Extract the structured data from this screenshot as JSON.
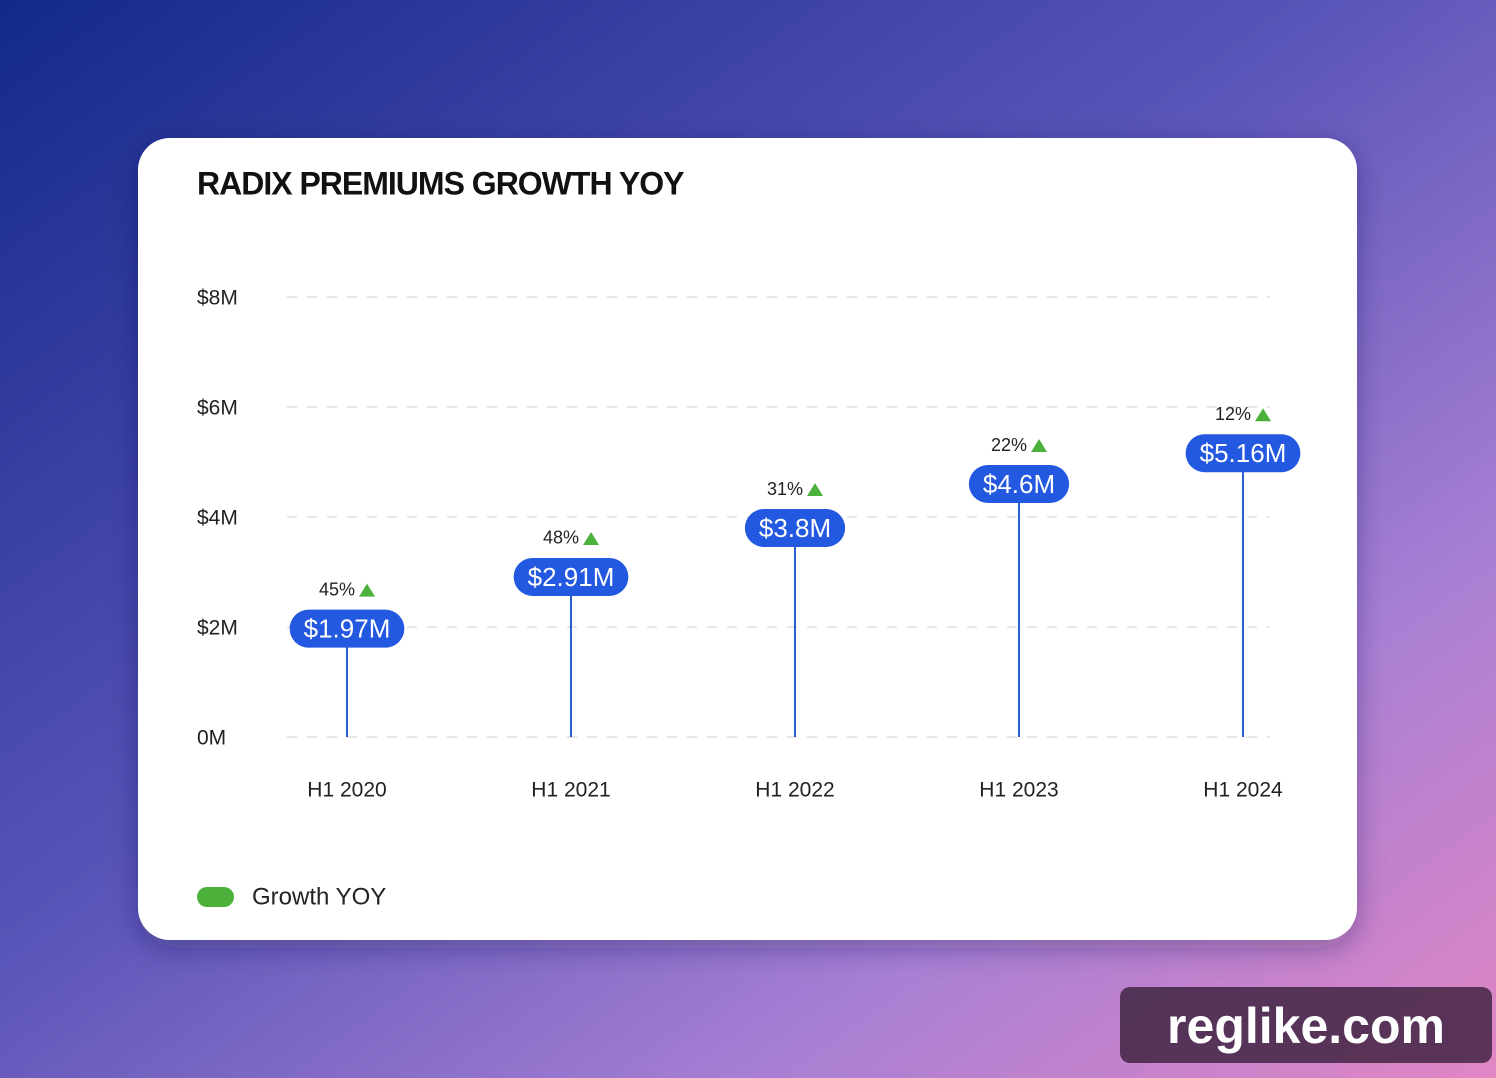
{
  "chart_data": {
    "type": "lollipop",
    "title": "RADIX PREMIUMS GROWTH YOY",
    "categories": [
      "H1 2020",
      "H1 2021",
      "H1 2022",
      "H1 2023",
      "H1 2024"
    ],
    "values": [
      1.97,
      2.91,
      3.8,
      4.6,
      5.16
    ],
    "value_labels": [
      "$1.97M",
      "$2.91M",
      "$3.8M",
      "$4.6M",
      "$5.16M"
    ],
    "color": "#2358e0",
    "growth": {
      "name": "Growth YOY",
      "color": "#4cb13a",
      "values": [
        45,
        48,
        31,
        22,
        12
      ],
      "value_labels": [
        "45%",
        "48%",
        "31%",
        "22%",
        "12%"
      ]
    },
    "ylim": [
      0,
      8
    ],
    "yticks": [
      {
        "value": 0,
        "label": "0M"
      },
      {
        "value": 2,
        "label": "$2M"
      },
      {
        "value": 4,
        "label": "$4M"
      },
      {
        "value": 6,
        "label": "$6M"
      },
      {
        "value": 8,
        "label": "$8M"
      }
    ],
    "grid": true
  },
  "watermark": "reglike.com"
}
